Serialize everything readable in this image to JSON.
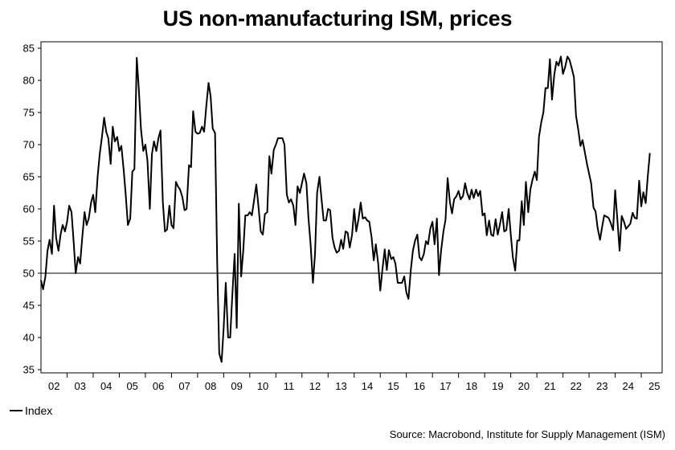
{
  "chart_data": {
    "type": "line",
    "title": "US non-manufacturing ISM, prices",
    "xlabel": "",
    "ylabel": "",
    "ylim": [
      34.5,
      86
    ],
    "yticks": [
      35,
      40,
      45,
      50,
      55,
      60,
      65,
      70,
      75,
      80,
      85
    ],
    "xlim": [
      2002.0,
      2025.8
    ],
    "xtick_labels": [
      "02",
      "03",
      "04",
      "05",
      "06",
      "07",
      "08",
      "09",
      "10",
      "11",
      "12",
      "13",
      "14",
      "15",
      "16",
      "17",
      "18",
      "19",
      "20",
      "21",
      "22",
      "23",
      "24",
      "25"
    ],
    "reference_line": 50,
    "grid": false,
    "legend": {
      "position": "bottom-left",
      "entries": [
        "Index"
      ]
    },
    "source": "Source: Macrobond, Institute for Supply Management (ISM)",
    "series": [
      {
        "name": "Index",
        "color": "#000000",
        "points": [
          [
            2002.0,
            48.9
          ],
          [
            2002.08,
            47.5
          ],
          [
            2002.17,
            49.5
          ],
          [
            2002.25,
            53.5
          ],
          [
            2002.33,
            55.2
          ],
          [
            2002.42,
            53.0
          ],
          [
            2002.5,
            60.5
          ],
          [
            2002.58,
            55.5
          ],
          [
            2002.67,
            53.5
          ],
          [
            2002.75,
            56.0
          ],
          [
            2002.83,
            57.5
          ],
          [
            2002.92,
            56.5
          ],
          [
            2003.0,
            58.0
          ],
          [
            2003.08,
            60.5
          ],
          [
            2003.17,
            59.5
          ],
          [
            2003.25,
            55.0
          ],
          [
            2003.33,
            50.0
          ],
          [
            2003.42,
            52.5
          ],
          [
            2003.5,
            51.5
          ],
          [
            2003.58,
            55.5
          ],
          [
            2003.67,
            59.5
          ],
          [
            2003.75,
            57.5
          ],
          [
            2003.83,
            58.5
          ],
          [
            2003.92,
            61.0
          ],
          [
            2004.0,
            62.2
          ],
          [
            2004.08,
            59.5
          ],
          [
            2004.17,
            65.0
          ],
          [
            2004.25,
            68.5
          ],
          [
            2004.33,
            71.0
          ],
          [
            2004.42,
            74.2
          ],
          [
            2004.5,
            72.0
          ],
          [
            2004.58,
            71.0
          ],
          [
            2004.67,
            67.0
          ],
          [
            2004.75,
            72.8
          ],
          [
            2004.83,
            70.5
          ],
          [
            2004.92,
            71.2
          ],
          [
            2005.0,
            69.0
          ],
          [
            2005.08,
            69.8
          ],
          [
            2005.17,
            66.0
          ],
          [
            2005.25,
            62.0
          ],
          [
            2005.33,
            57.5
          ],
          [
            2005.42,
            58.5
          ],
          [
            2005.5,
            65.8
          ],
          [
            2005.58,
            66.2
          ],
          [
            2005.67,
            83.5
          ],
          [
            2005.75,
            78.5
          ],
          [
            2005.83,
            72.5
          ],
          [
            2005.92,
            69.0
          ],
          [
            2006.0,
            70.0
          ],
          [
            2006.08,
            67.5
          ],
          [
            2006.17,
            60.0
          ],
          [
            2006.25,
            68.5
          ],
          [
            2006.33,
            70.5
          ],
          [
            2006.42,
            69.0
          ],
          [
            2006.5,
            71.0
          ],
          [
            2006.58,
            72.2
          ],
          [
            2006.67,
            61.0
          ],
          [
            2006.75,
            56.5
          ],
          [
            2006.83,
            56.8
          ],
          [
            2006.92,
            60.5
          ],
          [
            2007.0,
            57.5
          ],
          [
            2007.08,
            57.0
          ],
          [
            2007.17,
            64.2
          ],
          [
            2007.25,
            63.5
          ],
          [
            2007.33,
            63.0
          ],
          [
            2007.42,
            61.8
          ],
          [
            2007.5,
            59.8
          ],
          [
            2007.58,
            60.0
          ],
          [
            2007.67,
            66.8
          ],
          [
            2007.75,
            66.5
          ],
          [
            2007.83,
            75.2
          ],
          [
            2007.92,
            72.0
          ],
          [
            2008.0,
            71.7
          ],
          [
            2008.08,
            71.8
          ],
          [
            2008.17,
            72.8
          ],
          [
            2008.25,
            72.0
          ],
          [
            2008.33,
            75.8
          ],
          [
            2008.42,
            79.6
          ],
          [
            2008.5,
            77.5
          ],
          [
            2008.58,
            72.5
          ],
          [
            2008.67,
            71.8
          ],
          [
            2008.75,
            52.0
          ],
          [
            2008.83,
            37.5
          ],
          [
            2008.92,
            36.2
          ],
          [
            2009.0,
            41.5
          ],
          [
            2009.08,
            48.5
          ],
          [
            2009.17,
            40.0
          ],
          [
            2009.25,
            40.0
          ],
          [
            2009.33,
            46.5
          ],
          [
            2009.42,
            53.0
          ],
          [
            2009.5,
            41.5
          ],
          [
            2009.58,
            60.8
          ],
          [
            2009.67,
            49.5
          ],
          [
            2009.75,
            53.5
          ],
          [
            2009.83,
            59.0
          ],
          [
            2009.92,
            59.0
          ],
          [
            2010.0,
            59.5
          ],
          [
            2010.08,
            59.0
          ],
          [
            2010.17,
            61.5
          ],
          [
            2010.25,
            63.8
          ],
          [
            2010.33,
            60.5
          ],
          [
            2010.42,
            56.5
          ],
          [
            2010.5,
            56.0
          ],
          [
            2010.58,
            59.2
          ],
          [
            2010.67,
            59.5
          ],
          [
            2010.75,
            68.2
          ],
          [
            2010.83,
            65.5
          ],
          [
            2010.92,
            69.2
          ],
          [
            2011.0,
            70.0
          ],
          [
            2011.08,
            71.0
          ],
          [
            2011.17,
            71.0
          ],
          [
            2011.25,
            71.0
          ],
          [
            2011.33,
            70.0
          ],
          [
            2011.42,
            62.2
          ],
          [
            2011.5,
            61.0
          ],
          [
            2011.58,
            61.5
          ],
          [
            2011.67,
            60.5
          ],
          [
            2011.75,
            57.5
          ],
          [
            2011.83,
            63.5
          ],
          [
            2011.92,
            62.5
          ],
          [
            2012.0,
            64.0
          ],
          [
            2012.08,
            65.5
          ],
          [
            2012.17,
            64.0
          ],
          [
            2012.25,
            58.5
          ],
          [
            2012.33,
            54.5
          ],
          [
            2012.42,
            48.5
          ],
          [
            2012.5,
            53.0
          ],
          [
            2012.58,
            62.5
          ],
          [
            2012.67,
            65.0
          ],
          [
            2012.75,
            61.5
          ],
          [
            2012.83,
            58.2
          ],
          [
            2012.92,
            58.2
          ],
          [
            2013.0,
            60.0
          ],
          [
            2013.08,
            59.8
          ],
          [
            2013.17,
            55.5
          ],
          [
            2013.25,
            54.0
          ],
          [
            2013.33,
            53.2
          ],
          [
            2013.42,
            53.5
          ],
          [
            2013.5,
            55.2
          ],
          [
            2013.58,
            53.8
          ],
          [
            2013.67,
            56.5
          ],
          [
            2013.75,
            56.3
          ],
          [
            2013.83,
            54.0
          ],
          [
            2013.92,
            56.0
          ],
          [
            2014.0,
            60.0
          ],
          [
            2014.08,
            56.5
          ],
          [
            2014.17,
            58.5
          ],
          [
            2014.25,
            61.0
          ],
          [
            2014.33,
            58.5
          ],
          [
            2014.42,
            58.7
          ],
          [
            2014.5,
            58.2
          ],
          [
            2014.58,
            58.0
          ],
          [
            2014.67,
            55.5
          ],
          [
            2014.75,
            52.0
          ],
          [
            2014.83,
            54.5
          ],
          [
            2014.92,
            51.5
          ],
          [
            2015.0,
            47.3
          ],
          [
            2015.08,
            50.5
          ],
          [
            2015.17,
            53.7
          ],
          [
            2015.25,
            50.5
          ],
          [
            2015.33,
            53.6
          ],
          [
            2015.42,
            52.2
          ],
          [
            2015.5,
            52.5
          ],
          [
            2015.58,
            51.5
          ],
          [
            2015.67,
            48.5
          ],
          [
            2015.75,
            48.5
          ],
          [
            2015.83,
            48.5
          ],
          [
            2015.92,
            49.5
          ],
          [
            2016.0,
            47.0
          ],
          [
            2016.08,
            46.0
          ],
          [
            2016.17,
            50.5
          ],
          [
            2016.25,
            53.5
          ],
          [
            2016.33,
            55.0
          ],
          [
            2016.42,
            56.0
          ],
          [
            2016.5,
            52.5
          ],
          [
            2016.58,
            52.0
          ],
          [
            2016.67,
            53.0
          ],
          [
            2016.75,
            55.0
          ],
          [
            2016.83,
            54.5
          ],
          [
            2016.92,
            57.0
          ],
          [
            2017.0,
            58.0
          ],
          [
            2017.08,
            54.5
          ],
          [
            2017.17,
            58.5
          ],
          [
            2017.25,
            49.7
          ],
          [
            2017.33,
            53.5
          ],
          [
            2017.42,
            56.5
          ],
          [
            2017.5,
            58.3
          ],
          [
            2017.58,
            64.8
          ],
          [
            2017.67,
            61.0
          ],
          [
            2017.75,
            59.3
          ],
          [
            2017.83,
            61.5
          ],
          [
            2017.92,
            62.0
          ],
          [
            2018.0,
            62.8
          ],
          [
            2018.08,
            61.5
          ],
          [
            2018.17,
            62.0
          ],
          [
            2018.25,
            64.0
          ],
          [
            2018.33,
            62.5
          ],
          [
            2018.42,
            61.5
          ],
          [
            2018.5,
            63.0
          ],
          [
            2018.58,
            61.7
          ],
          [
            2018.67,
            63.0
          ],
          [
            2018.75,
            62.0
          ],
          [
            2018.83,
            62.8
          ],
          [
            2018.92,
            59.0
          ],
          [
            2019.0,
            59.3
          ],
          [
            2019.08,
            55.9
          ],
          [
            2019.17,
            58.2
          ],
          [
            2019.25,
            56.0
          ],
          [
            2019.33,
            55.8
          ],
          [
            2019.42,
            58.4
          ],
          [
            2019.5,
            56.0
          ],
          [
            2019.58,
            57.5
          ],
          [
            2019.67,
            59.5
          ],
          [
            2019.75,
            56.5
          ],
          [
            2019.83,
            56.7
          ],
          [
            2019.92,
            60.0
          ],
          [
            2020.0,
            56.0
          ],
          [
            2020.08,
            52.5
          ],
          [
            2020.17,
            50.4
          ],
          [
            2020.25,
            55.1
          ],
          [
            2020.33,
            55.1
          ],
          [
            2020.42,
            61.2
          ],
          [
            2020.5,
            57.5
          ],
          [
            2020.58,
            64.2
          ],
          [
            2020.67,
            59.5
          ],
          [
            2020.75,
            63.0
          ],
          [
            2020.83,
            64.5
          ],
          [
            2020.92,
            65.8
          ],
          [
            2021.0,
            64.5
          ],
          [
            2021.08,
            71.2
          ],
          [
            2021.17,
            73.5
          ],
          [
            2021.25,
            75.0
          ],
          [
            2021.33,
            78.8
          ],
          [
            2021.42,
            78.8
          ],
          [
            2021.5,
            83.3
          ],
          [
            2021.58,
            77.0
          ],
          [
            2021.67,
            81.0
          ],
          [
            2021.75,
            82.9
          ],
          [
            2021.83,
            82.3
          ],
          [
            2021.92,
            83.7
          ],
          [
            2022.0,
            81.0
          ],
          [
            2022.08,
            82.0
          ],
          [
            2022.17,
            83.7
          ],
          [
            2022.25,
            83.2
          ],
          [
            2022.33,
            82.0
          ],
          [
            2022.42,
            80.5
          ],
          [
            2022.5,
            74.5
          ],
          [
            2022.58,
            72.5
          ],
          [
            2022.67,
            69.8
          ],
          [
            2022.75,
            70.7
          ],
          [
            2022.83,
            69.0
          ],
          [
            2022.92,
            67.0
          ],
          [
            2023.0,
            65.5
          ],
          [
            2023.08,
            64.0
          ],
          [
            2023.17,
            60.2
          ],
          [
            2023.25,
            59.6
          ],
          [
            2023.33,
            57.0
          ],
          [
            2023.42,
            55.2
          ],
          [
            2023.5,
            57.2
          ],
          [
            2023.58,
            59.0
          ],
          [
            2023.67,
            58.8
          ],
          [
            2023.75,
            58.6
          ],
          [
            2023.83,
            57.8
          ],
          [
            2023.92,
            56.7
          ],
          [
            2024.0,
            62.9
          ],
          [
            2024.08,
            58.6
          ],
          [
            2024.17,
            53.5
          ],
          [
            2024.25,
            58.9
          ],
          [
            2024.33,
            58.1
          ],
          [
            2024.42,
            56.9
          ],
          [
            2024.5,
            57.3
          ],
          [
            2024.58,
            57.7
          ],
          [
            2024.67,
            59.4
          ],
          [
            2024.75,
            58.6
          ],
          [
            2024.83,
            58.5
          ],
          [
            2024.92,
            64.4
          ],
          [
            2025.0,
            60.4
          ],
          [
            2025.08,
            62.6
          ],
          [
            2025.17,
            60.9
          ],
          [
            2025.25,
            65.1
          ],
          [
            2025.33,
            68.7
          ]
        ]
      }
    ]
  }
}
